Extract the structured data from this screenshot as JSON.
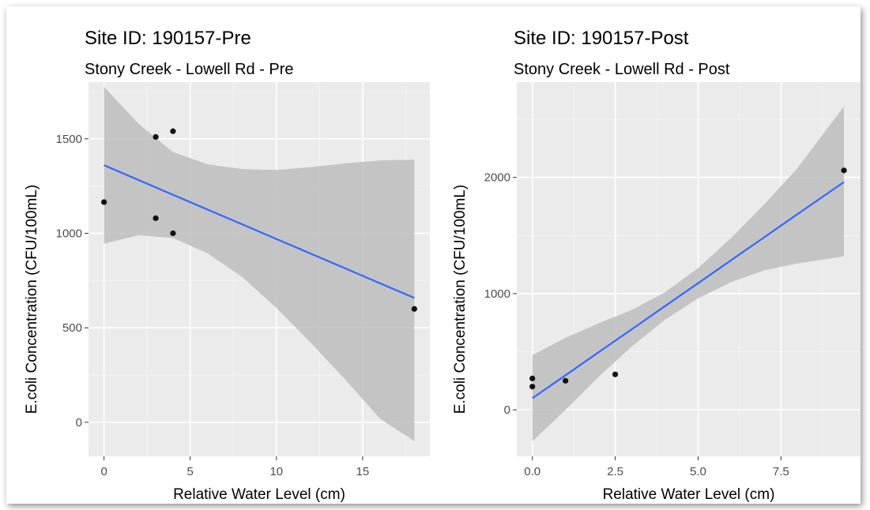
{
  "colors": {
    "panel_background": "#ebebeb",
    "grid_major": "#ffffff",
    "grid_minor": "#f4f4f4",
    "fit_line": "#3366ff",
    "confidence_band": "#bdbdbd",
    "points": "#111111",
    "tick_text": "#4d4d4d",
    "title_text": "#000000"
  },
  "chart_data": [
    {
      "type": "scatter",
      "title": "Site ID: 190157-Pre",
      "subtitle": "Stony Creek - Lowell Rd - Pre",
      "xlabel": "Relative Water Level (cm)",
      "ylabel": "E.coli Concentration (CFU/100mL)",
      "xlim": [
        -0.9,
        18.9
      ],
      "ylim": [
        -180,
        1800
      ],
      "x_ticks": [
        0,
        5,
        10,
        15
      ],
      "x_tick_labels": [
        "0",
        "5",
        "10",
        "15"
      ],
      "y_ticks": [
        0,
        500,
        1000,
        1500
      ],
      "y_tick_labels": [
        "0",
        "500",
        "1000",
        "1500"
      ],
      "grid": true,
      "legend": "none",
      "points": [
        {
          "x": 0,
          "y": 1165
        },
        {
          "x": 3,
          "y": 1510
        },
        {
          "x": 3,
          "y": 1080
        },
        {
          "x": 4,
          "y": 1540
        },
        {
          "x": 4,
          "y": 1000
        },
        {
          "x": 18,
          "y": 600
        }
      ],
      "fit": {
        "method": "linear",
        "x": [
          0,
          2,
          4,
          6,
          8,
          10,
          12,
          14,
          16,
          18
        ],
        "y": [
          1360,
          1282,
          1204,
          1126,
          1048,
          970,
          892,
          814,
          736,
          658
        ],
        "lower": [
          945,
          990,
          975,
          895,
          770,
          605,
          420,
          225,
          20,
          -100
        ],
        "upper": [
          1775,
          1580,
          1430,
          1365,
          1340,
          1335,
          1350,
          1370,
          1385,
          1390
        ]
      }
    },
    {
      "type": "scatter",
      "title": "Site ID: 190157-Post",
      "subtitle": "Stony Creek - Lowell Rd - Post",
      "xlabel": "Relative Water Level (cm)",
      "ylabel": "E.coli Concentration (CFU/100mL)",
      "xlim": [
        -0.47,
        9.9
      ],
      "ylim": [
        -400,
        2820
      ],
      "x_ticks": [
        0,
        2.5,
        5,
        7.5
      ],
      "x_tick_labels": [
        "0.0",
        "2.5",
        "5.0",
        "7.5"
      ],
      "y_ticks": [
        0,
        1000,
        2000
      ],
      "y_tick_labels": [
        "0",
        "1000",
        "2000"
      ],
      "grid": true,
      "legend": "none",
      "points": [
        {
          "x": 0,
          "y": 270
        },
        {
          "x": 0,
          "y": 200
        },
        {
          "x": 1,
          "y": 250
        },
        {
          "x": 2.5,
          "y": 305
        },
        {
          "x": 9.4,
          "y": 2060
        }
      ],
      "fit": {
        "method": "linear",
        "x": [
          0,
          1,
          2,
          3,
          4,
          5,
          6,
          7,
          8,
          9.4
        ],
        "y": [
          100,
          298,
          496,
          694,
          892,
          1090,
          1288,
          1486,
          1684,
          1960
        ],
        "lower": [
          -270,
          0,
          285,
          545,
          775,
          960,
          1100,
          1200,
          1260,
          1320
        ],
        "upper": [
          470,
          620,
          745,
          860,
          1010,
          1220,
          1480,
          1770,
          2080,
          2610
        ]
      }
    }
  ]
}
